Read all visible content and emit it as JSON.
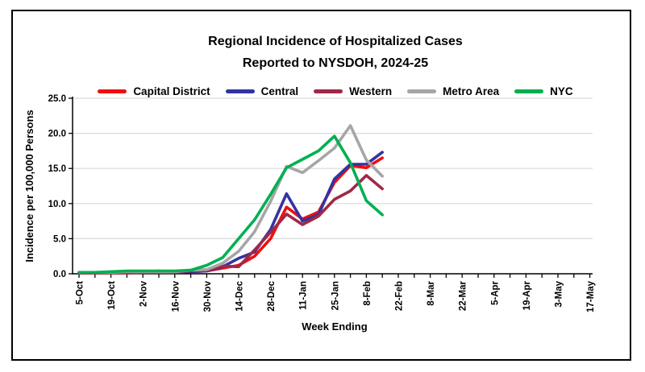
{
  "header": {
    "title_line1": "Regional Incidence of Hospitalized Cases",
    "title_line2": "Reported to NYSDOH, 2024-25"
  },
  "legend": [
    {
      "label": "Capital District",
      "color": "#F20D0D"
    },
    {
      "label": "Central",
      "color": "#3333A2"
    },
    {
      "label": "Western",
      "color": "#A02946"
    },
    {
      "label": "Metro Area",
      "color": "#A6A6A6"
    },
    {
      "label": "NYC",
      "color": "#00B050"
    }
  ],
  "chart_data": {
    "type": "line",
    "title": "Regional Incidence of Hospitalized Cases Reported to NYSDOH, 2024-25",
    "xlabel": "Week Ending",
    "ylabel": "Incidence per 100,000 Persons",
    "ylim": [
      0,
      25
    ],
    "ytick_step": 5,
    "ytick_labels": [
      "0.0",
      "5.0",
      "10.0",
      "15.0",
      "20.0",
      "25.0"
    ],
    "grid": "horizontal-gridlines-on",
    "legend_position": "top",
    "categories": [
      "5-Oct",
      "12-Oct",
      "19-Oct",
      "26-Oct",
      "2-Nov",
      "9-Nov",
      "16-Nov",
      "23-Nov",
      "30-Nov",
      "7-Dec",
      "14-Dec",
      "21-Dec",
      "28-Dec",
      "4-Jan",
      "11-Jan",
      "18-Jan",
      "25-Jan",
      "1-Feb",
      "8-Feb",
      "15-Feb",
      "22-Feb",
      "1-Mar",
      "8-Mar",
      "15-Mar",
      "22-Mar",
      "29-Mar",
      "5-Apr",
      "12-Apr",
      "19-Apr",
      "26-Apr",
      "3-May",
      "10-May",
      "17-May"
    ],
    "x_label_every_n": 2,
    "series": [
      {
        "name": "Capital District",
        "color": "#F20D0D",
        "values": [
          0.1,
          0.1,
          0.1,
          0.1,
          0.2,
          0.2,
          0.2,
          0.3,
          0.4,
          0.8,
          1.2,
          2.5,
          5.0,
          9.5,
          7.8,
          8.8,
          13.0,
          15.4,
          15.1,
          16.5
        ]
      },
      {
        "name": "Central",
        "color": "#3333A2",
        "values": [
          0.1,
          0.1,
          0.1,
          0.2,
          0.3,
          0.4,
          0.2,
          0.3,
          0.4,
          1.0,
          2.2,
          3.1,
          6.3,
          11.4,
          7.5,
          8.4,
          13.5,
          15.6,
          15.6,
          17.3
        ]
      },
      {
        "name": "Western",
        "color": "#A02946",
        "values": [
          0.1,
          0.1,
          0.1,
          0.1,
          0.2,
          0.3,
          0.3,
          0.4,
          0.5,
          1.1,
          1.0,
          3.4,
          5.9,
          8.5,
          7.0,
          8.2,
          10.6,
          11.8,
          14.0,
          12.1
        ]
      },
      {
        "name": "Metro Area",
        "color": "#A6A6A6",
        "values": [
          0.2,
          0.2,
          0.2,
          0.3,
          0.3,
          0.3,
          0.3,
          0.5,
          0.6,
          1.5,
          3.2,
          6.0,
          10.3,
          15.3,
          14.4,
          16.1,
          17.9,
          21.1,
          16.2,
          13.9
        ]
      },
      {
        "name": "NYC",
        "color": "#00B050",
        "values": [
          0.2,
          0.2,
          0.3,
          0.4,
          0.4,
          0.4,
          0.4,
          0.5,
          1.2,
          2.3,
          5.0,
          7.7,
          11.3,
          15.1,
          16.3,
          17.5,
          19.6,
          15.8,
          10.4,
          8.4
        ]
      }
    ]
  }
}
